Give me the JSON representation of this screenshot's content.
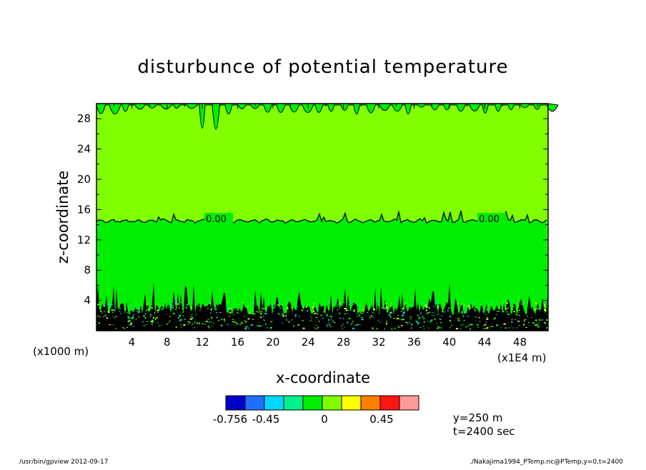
{
  "chart_data": {
    "type": "contour",
    "title": "disturbunce of potential temperature",
    "xlabel": "x-coordinate",
    "ylabel": "z-coordinate",
    "x_unit_note": "(x1E4 m)",
    "z_unit_note": "(x1000 m)",
    "x_ticks": [
      "4",
      "8",
      "12",
      "16",
      "20",
      "24",
      "28",
      "32",
      "36",
      "40",
      "44",
      "48"
    ],
    "z_ticks": [
      "4",
      "8",
      "12",
      "16",
      "20",
      "24",
      "28"
    ],
    "xlim": [
      0,
      51.2
    ],
    "zlim": [
      0,
      30
    ],
    "contour_labels": [
      "0.00",
      "0.00"
    ],
    "zero_contour_level_z": 14.5,
    "colorbar": {
      "colors": [
        "#0000cc",
        "#1f6fff",
        "#00d8ff",
        "#00f08c",
        "#00ee00",
        "#7fff00",
        "#ffff00",
        "#ff7f00",
        "#ff1414",
        "#ff9a9a"
      ],
      "tick_labels": [
        "-0.756",
        "-0.45",
        "0",
        "0.45"
      ]
    },
    "info_lines": [
      "y=250 m",
      "t=2400 sec"
    ]
  },
  "footer": {
    "left": "/usr/bin/gpview  2012-09-17",
    "right": "./Nakajima1994_PTemp.nc@PTemp,y=0,t=2400"
  }
}
